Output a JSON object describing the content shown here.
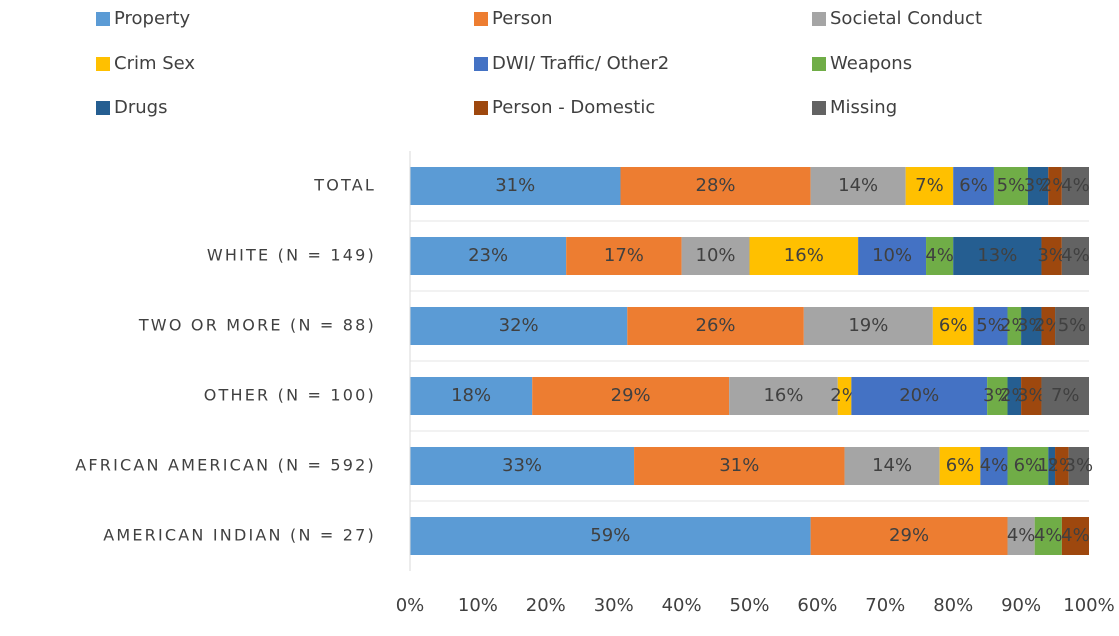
{
  "chart_data": {
    "type": "stacked_barh",
    "categories": [
      "TOTAL",
      "WHITE (N = 149)",
      "TWO OR MORE (N = 88)",
      "OTHER (N = 100)",
      "AFRICAN AMERICAN (N = 592)",
      "AMERICAN INDIAN (N = 27)"
    ],
    "series": [
      {
        "name": "Property",
        "color": "#5b9bd5",
        "values": [
          31,
          23,
          32,
          18,
          33,
          59
        ],
        "value_labels": [
          "31%",
          "23%",
          "32%",
          "18%",
          "33%",
          "59%"
        ]
      },
      {
        "name": "Person",
        "color": "#ed7d31",
        "values": [
          28,
          17,
          26,
          29,
          31,
          29
        ],
        "value_labels": [
          "28%",
          "17%",
          "26%",
          "29%",
          "31%",
          "29%"
        ]
      },
      {
        "name": "Societal Conduct",
        "color": "#a5a5a5",
        "values": [
          14,
          10,
          19,
          16,
          14,
          4
        ],
        "value_labels": [
          "14%",
          "10%",
          "19%",
          "16%",
          "14%",
          "4%"
        ]
      },
      {
        "name": "Crim Sex",
        "color": "#ffc000",
        "values": [
          7,
          16,
          6,
          2,
          6,
          0
        ],
        "value_labels": [
          "7%",
          "16%",
          "6%",
          "2%",
          "6%",
          null
        ]
      },
      {
        "name": "DWI/ Traffic/ Other2",
        "color": "#4472c4",
        "values": [
          6,
          10,
          5,
          20,
          4,
          0
        ],
        "value_labels": [
          "6%",
          "10%",
          "5%",
          "20%",
          "4%",
          null
        ]
      },
      {
        "name": "Weapons",
        "color": "#70ad47",
        "values": [
          5,
          4,
          2,
          3,
          6,
          4
        ],
        "value_labels": [
          "5%",
          "4%",
          "2%",
          "3%",
          "6%",
          "4%"
        ]
      },
      {
        "name": "Drugs",
        "color": "#255e91",
        "values": [
          3,
          13,
          3,
          2,
          1,
          0
        ],
        "value_labels": [
          "3%",
          "13%",
          "3%",
          "2%",
          "1%",
          null
        ]
      },
      {
        "name": "Person - Domestic",
        "color": "#9e480e",
        "values": [
          2,
          3,
          2,
          3,
          2,
          4
        ],
        "value_labels": [
          "2%",
          "3%",
          "2%",
          "3%",
          "2%",
          "4%"
        ]
      },
      {
        "name": "Missing",
        "color": "#636363",
        "values": [
          4,
          4,
          5,
          7,
          3,
          0
        ],
        "value_labels": [
          "4%",
          "4%",
          "5%",
          "7%",
          "3%",
          null
        ]
      }
    ],
    "xlim": [
      0,
      100
    ],
    "xticks": [
      {
        "value": 0,
        "label": "0%"
      },
      {
        "value": 10,
        "label": "10%"
      },
      {
        "value": 20,
        "label": "20%"
      },
      {
        "value": 30,
        "label": "30%"
      },
      {
        "value": 40,
        "label": "40%"
      },
      {
        "value": 50,
        "label": "50%"
      },
      {
        "value": 60,
        "label": "60%"
      },
      {
        "value": 70,
        "label": "70%"
      },
      {
        "value": 80,
        "label": "80%"
      },
      {
        "value": 90,
        "label": "90%"
      },
      {
        "value": 100,
        "label": "100%"
      }
    ],
    "legend": "top"
  }
}
